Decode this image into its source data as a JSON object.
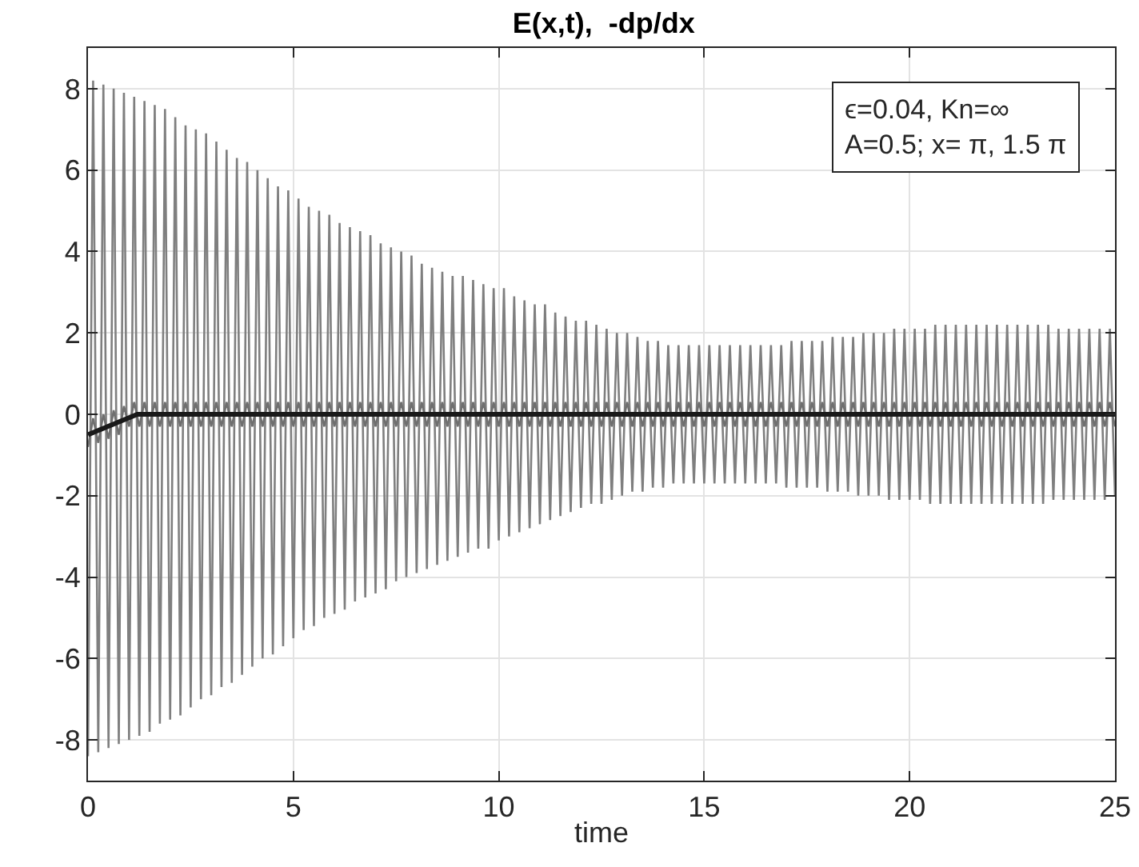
{
  "chart_data": {
    "type": "line",
    "title": "E(x,t),  -dp/dx",
    "xlabel": "time",
    "xlim": [
      0,
      25
    ],
    "xticks": [
      0,
      5,
      10,
      15,
      20,
      25
    ],
    "ylim": [
      -9,
      9
    ],
    "yticks": [
      -8,
      -6,
      -4,
      -2,
      0,
      2,
      4,
      6,
      8
    ],
    "grid": true,
    "annotations": [
      "ϵ=0.04, Kn=∞",
      "A=0.5; x= π, 1.5 π"
    ],
    "x": [
      0,
      0.125,
      0.25,
      0.375,
      0.5,
      0.625,
      0.75,
      0.875,
      1,
      1.125,
      1.25,
      1.375,
      1.5,
      1.625,
      1.75,
      1.875,
      2,
      2.125,
      2.25,
      2.375,
      2.5,
      2.625,
      2.75,
      2.875,
      3,
      3.125,
      3.25,
      3.375,
      3.5,
      3.625,
      3.75,
      3.875,
      4,
      4.125,
      4.25,
      4.375,
      4.5,
      4.625,
      4.75,
      4.875,
      5,
      5.125,
      5.25,
      5.375,
      5.5,
      5.625,
      5.75,
      5.875,
      6,
      6.125,
      6.25,
      6.375,
      6.5,
      6.625,
      6.75,
      6.875,
      7,
      7.125,
      7.25,
      7.375,
      7.5,
      7.625,
      7.75,
      7.875,
      8,
      8.125,
      8.25,
      8.375,
      8.5,
      8.625,
      8.75,
      8.875,
      9,
      9.125,
      9.25,
      9.375,
      9.5,
      9.625,
      9.75,
      9.875,
      10,
      10.125,
      10.25,
      10.375,
      10.5,
      10.625,
      10.75,
      10.875,
      11,
      11.125,
      11.25,
      11.375,
      11.5,
      11.625,
      11.75,
      11.875,
      12,
      12.125,
      12.25,
      12.375,
      12.5,
      12.625,
      12.75,
      12.875,
      13,
      13.125,
      13.25,
      13.375,
      13.5,
      13.625,
      13.75,
      13.875,
      14,
      14.125,
      14.25,
      14.375,
      14.5,
      14.625,
      14.75,
      14.875,
      15,
      15.125,
      15.25,
      15.375,
      15.5,
      15.625,
      15.75,
      15.875,
      16,
      16.125,
      16.25,
      16.375,
      16.5,
      16.625,
      16.75,
      16.875,
      17,
      17.125,
      17.25,
      17.375,
      17.5,
      17.625,
      17.75,
      17.875,
      18,
      18.125,
      18.25,
      18.375,
      18.5,
      18.625,
      18.75,
      18.875,
      19,
      19.125,
      19.25,
      19.375,
      19.5,
      19.625,
      19.75,
      19.875,
      20,
      20.125,
      20.25,
      20.375,
      20.5,
      20.625,
      20.75,
      20.875,
      21,
      21.125,
      21.25,
      21.375,
      21.5,
      21.625,
      21.75,
      21.875,
      22,
      22.125,
      22.25,
      22.375,
      22.5,
      22.625,
      22.75,
      22.875,
      23,
      23.125,
      23.25,
      23.375,
      23.5,
      23.625,
      23.75,
      23.875,
      24,
      24.125,
      24.25,
      24.375,
      24.5,
      24.625,
      24.75,
      24.875,
      25
    ],
    "series": [
      {
        "color": "#7f7f7f",
        "values": [
          -8.4,
          8.2,
          -8.3,
          8.1,
          -8.2,
          8.0,
          -8.1,
          7.9,
          -8.0,
          7.8,
          -7.9,
          7.7,
          -7.8,
          7.6,
          -7.6,
          7.5,
          -7.5,
          7.3,
          -7.4,
          7.1,
          -7.2,
          7.0,
          -7.0,
          6.9,
          -6.9,
          6.7,
          -6.7,
          6.5,
          -6.6,
          6.3,
          -6.4,
          6.2,
          -6.2,
          6.0,
          -6.0,
          5.8,
          -5.9,
          5.6,
          -5.7,
          5.5,
          -5.5,
          5.3,
          -5.3,
          5.1,
          -5.2,
          5.0,
          -5.0,
          4.9,
          -4.9,
          4.7,
          -4.8,
          4.6,
          -4.6,
          4.5,
          -4.5,
          4.4,
          -4.4,
          4.2,
          -4.3,
          4.1,
          -4.1,
          4.0,
          -4.0,
          3.9,
          -3.9,
          3.7,
          -3.8,
          3.6,
          -3.7,
          3.5,
          -3.6,
          3.4,
          -3.5,
          3.4,
          -3.4,
          3.3,
          -3.3,
          3.2,
          -3.3,
          3.1,
          -3.1,
          3.1,
          -3.0,
          2.9,
          -2.9,
          2.8,
          -2.8,
          2.7,
          -2.7,
          2.7,
          -2.6,
          2.5,
          -2.5,
          2.4,
          -2.4,
          2.3,
          -2.3,
          2.3,
          -2.2,
          2.2,
          -2.2,
          2.1,
          -2.1,
          2.0,
          -2.0,
          2.0,
          -1.9,
          1.9,
          -1.9,
          1.8,
          -1.8,
          1.8,
          -1.8,
          1.7,
          -1.7,
          1.7,
          -1.7,
          1.7,
          -1.7,
          1.7,
          -1.7,
          1.7,
          -1.7,
          1.7,
          -1.7,
          1.7,
          -1.7,
          1.7,
          -1.7,
          1.7,
          -1.7,
          1.7,
          -1.7,
          1.7,
          -1.7,
          1.7,
          -1.8,
          1.8,
          -1.8,
          1.8,
          -1.8,
          1.8,
          -1.8,
          1.8,
          -1.9,
          1.9,
          -1.9,
          1.9,
          -1.9,
          1.9,
          -2.0,
          2.0,
          -2.0,
          2.0,
          -2.0,
          2.0,
          -2.1,
          2.1,
          -2.1,
          2.1,
          -2.1,
          2.1,
          -2.1,
          2.1,
          -2.2,
          2.2,
          -2.2,
          2.2,
          -2.2,
          2.2,
          -2.2,
          2.2,
          -2.2,
          2.2,
          -2.2,
          2.2,
          -2.2,
          2.2,
          -2.2,
          2.2,
          -2.2,
          2.2,
          -2.2,
          2.2,
          -2.2,
          2.2,
          -2.2,
          2.2,
          -2.1,
          2.1,
          -2.1,
          2.1,
          -2.1,
          2.1,
          -2.1,
          2.1,
          -2.1,
          2.1,
          -2.1,
          2.1,
          -2.0
        ]
      },
      {
        "color": "#6f6f6f",
        "values": [
          -0.8,
          -0.1,
          -0.7,
          0.0,
          -0.6,
          0.1,
          -0.5,
          0.2,
          -0.3,
          0.3,
          -0.3,
          0.3,
          -0.3,
          0.3,
          -0.3,
          0.3,
          -0.3,
          0.3,
          -0.3,
          0.3,
          -0.3,
          0.3,
          -0.3,
          0.3,
          -0.3,
          0.3,
          -0.3,
          0.3,
          -0.3,
          0.3,
          -0.3,
          0.3,
          -0.3,
          0.3,
          -0.3,
          0.3,
          -0.3,
          0.3,
          -0.3,
          0.3,
          -0.3,
          0.3,
          -0.3,
          0.3,
          -0.3,
          0.3,
          -0.3,
          0.3,
          -0.3,
          0.3,
          -0.3,
          0.3,
          -0.3,
          0.3,
          -0.3,
          0.3,
          -0.3,
          0.3,
          -0.3,
          0.3,
          -0.3,
          0.3,
          -0.3,
          0.3,
          -0.3,
          0.3,
          -0.3,
          0.3,
          -0.3,
          0.3,
          -0.3,
          0.3,
          -0.3,
          0.3,
          -0.3,
          0.3,
          -0.3,
          0.3,
          -0.3,
          0.3,
          -0.3,
          0.3,
          -0.3,
          0.3,
          -0.3,
          0.3,
          -0.3,
          0.3,
          -0.3,
          0.3,
          -0.3,
          0.3,
          -0.3,
          0.3,
          -0.3,
          0.3,
          -0.3,
          0.3,
          -0.3,
          0.3,
          -0.3,
          0.3,
          -0.3,
          0.3,
          -0.3,
          0.3,
          -0.3,
          0.3,
          -0.3,
          0.3,
          -0.3,
          0.3,
          -0.3,
          0.3,
          -0.3,
          0.3,
          -0.3,
          0.3,
          -0.3,
          0.3,
          -0.3,
          0.3,
          -0.3,
          0.3,
          -0.3,
          0.3,
          -0.3,
          0.3,
          -0.3,
          0.3,
          -0.3,
          0.3,
          -0.3,
          0.3,
          -0.3,
          0.3,
          -0.3,
          0.3,
          -0.3,
          0.3,
          -0.3,
          0.3,
          -0.3,
          0.3,
          -0.3,
          0.3,
          -0.3,
          0.3,
          -0.3,
          0.3,
          -0.3,
          0.3,
          -0.3,
          0.3,
          -0.3,
          0.3,
          -0.3,
          0.3,
          -0.3,
          0.3,
          -0.3,
          0.3,
          -0.3,
          0.3,
          -0.3,
          0.3,
          -0.3,
          0.3,
          -0.3,
          0.3,
          -0.3,
          0.3,
          -0.3,
          0.3,
          -0.3,
          0.3,
          -0.3,
          0.3,
          -0.3,
          0.3,
          -0.3,
          0.3,
          -0.3,
          0.3,
          -0.3,
          0.3,
          -0.3,
          0.3,
          -0.3,
          0.3,
          -0.3,
          0.3,
          -0.3,
          0.3,
          -0.3,
          0.3,
          -0.3,
          0.3,
          -0.3,
          0.3,
          -0.3
        ]
      },
      {
        "color": "#1a1a1a",
        "x": [
          0,
          1.2,
          25
        ],
        "values": [
          -0.5,
          0,
          0
        ]
      }
    ]
  }
}
